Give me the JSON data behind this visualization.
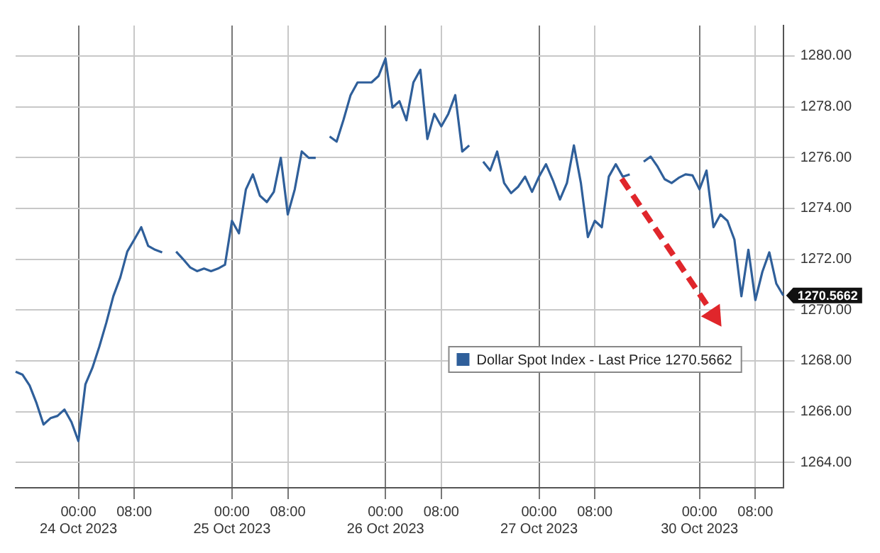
{
  "chart_data": {
    "type": "line",
    "legend": "bottom right",
    "grid": true,
    "marker": "none",
    "line_style": "solid",
    "ylim": [
      1263,
      1281.2
    ],
    "yticks": [
      {
        "value": 1264,
        "label": "1264.00"
      },
      {
        "value": 1266,
        "label": "1266.00"
      },
      {
        "value": 1268,
        "label": "1268.00"
      },
      {
        "value": 1270,
        "label": "1270.00"
      },
      {
        "value": 1272,
        "label": "1272.00"
      },
      {
        "value": 1274,
        "label": "1274.00"
      },
      {
        "value": 1276,
        "label": "1276.00"
      },
      {
        "value": 1278,
        "label": "1278.00"
      },
      {
        "value": 1280,
        "label": "1280.00"
      }
    ],
    "annotations": [
      "1270.5662"
    ],
    "categories": [
      null,
      null,
      null,
      null,
      null,
      null,
      null,
      null,
      null,
      "00:00\n24 Oct 2023",
      null,
      null,
      null,
      null,
      null,
      null,
      null,
      "08:00",
      null,
      null,
      null,
      null,
      null,
      null,
      null,
      null,
      null,
      null,
      null,
      null,
      null,
      "00:00\n25 Oct 2023",
      null,
      null,
      null,
      null,
      null,
      null,
      null,
      "08:00",
      null,
      null,
      null,
      null,
      null,
      null,
      null,
      null,
      null,
      null,
      null,
      null,
      null,
      "00:00\n26 Oct 2023",
      null,
      null,
      null,
      null,
      null,
      null,
      null,
      "08:00",
      null,
      null,
      null,
      null,
      null,
      null,
      null,
      null,
      null,
      null,
      null,
      null,
      null,
      "00:00\n27 Oct 2023",
      null,
      null,
      null,
      null,
      null,
      null,
      null,
      "08:00",
      null,
      null,
      null,
      null,
      null,
      null,
      null,
      null,
      null,
      null,
      null,
      null,
      null,
      null,
      "00:00\n30 Oct 2023",
      null,
      null,
      null,
      null,
      null,
      null,
      null,
      "08:00",
      null,
      null,
      null,
      null
    ],
    "series": [
      {
        "name": "Dollar Spot Index - Last Price 1270.5662",
        "color": "#2f5f9a",
        "values": [
          1267.57,
          1267.45,
          1267.03,
          1266.33,
          1265.49,
          1265.74,
          1265.83,
          1266.08,
          1265.59,
          1264.84,
          1267.07,
          1267.72,
          1268.56,
          1269.5,
          1270.54,
          1271.28,
          1272.3,
          1272.77,
          1273.26,
          1272.52,
          1272.37,
          1272.27,
          null,
          1272.3,
          1272.0,
          1271.68,
          1271.53,
          1271.63,
          1271.53,
          1271.63,
          1271.78,
          1273.51,
          1273.02,
          1274.75,
          1275.34,
          1274.5,
          1274.25,
          1274.65,
          1275.99,
          1273.76,
          1274.75,
          1276.24,
          1275.99,
          1275.99,
          null,
          1276.83,
          1276.63,
          1277.5,
          1278.46,
          1278.96,
          1278.96,
          1278.96,
          1279.21,
          1279.9,
          1277.97,
          1278.22,
          1277.47,
          1278.96,
          1279.46,
          1276.73,
          1277.72,
          1277.23,
          1277.72,
          1278.46,
          1276.24,
          1276.48,
          null,
          1275.84,
          1275.49,
          1276.24,
          1275.0,
          1274.6,
          1274.85,
          1275.25,
          1274.65,
          1275.25,
          1275.74,
          1275.1,
          1274.35,
          1275.0,
          1276.48,
          1275.0,
          1272.87,
          1273.51,
          1273.26,
          1275.25,
          1275.74,
          1275.25,
          1275.34,
          null,
          1275.84,
          1276.04,
          1275.64,
          1275.15,
          1275.0,
          1275.2,
          1275.34,
          1275.3,
          1274.75,
          1275.49,
          1273.26,
          1273.76,
          1273.51,
          1272.77,
          1270.54,
          1272.37,
          1270.39,
          1271.5,
          1272.27,
          1271.04,
          1270.57
        ]
      }
    ]
  }
}
